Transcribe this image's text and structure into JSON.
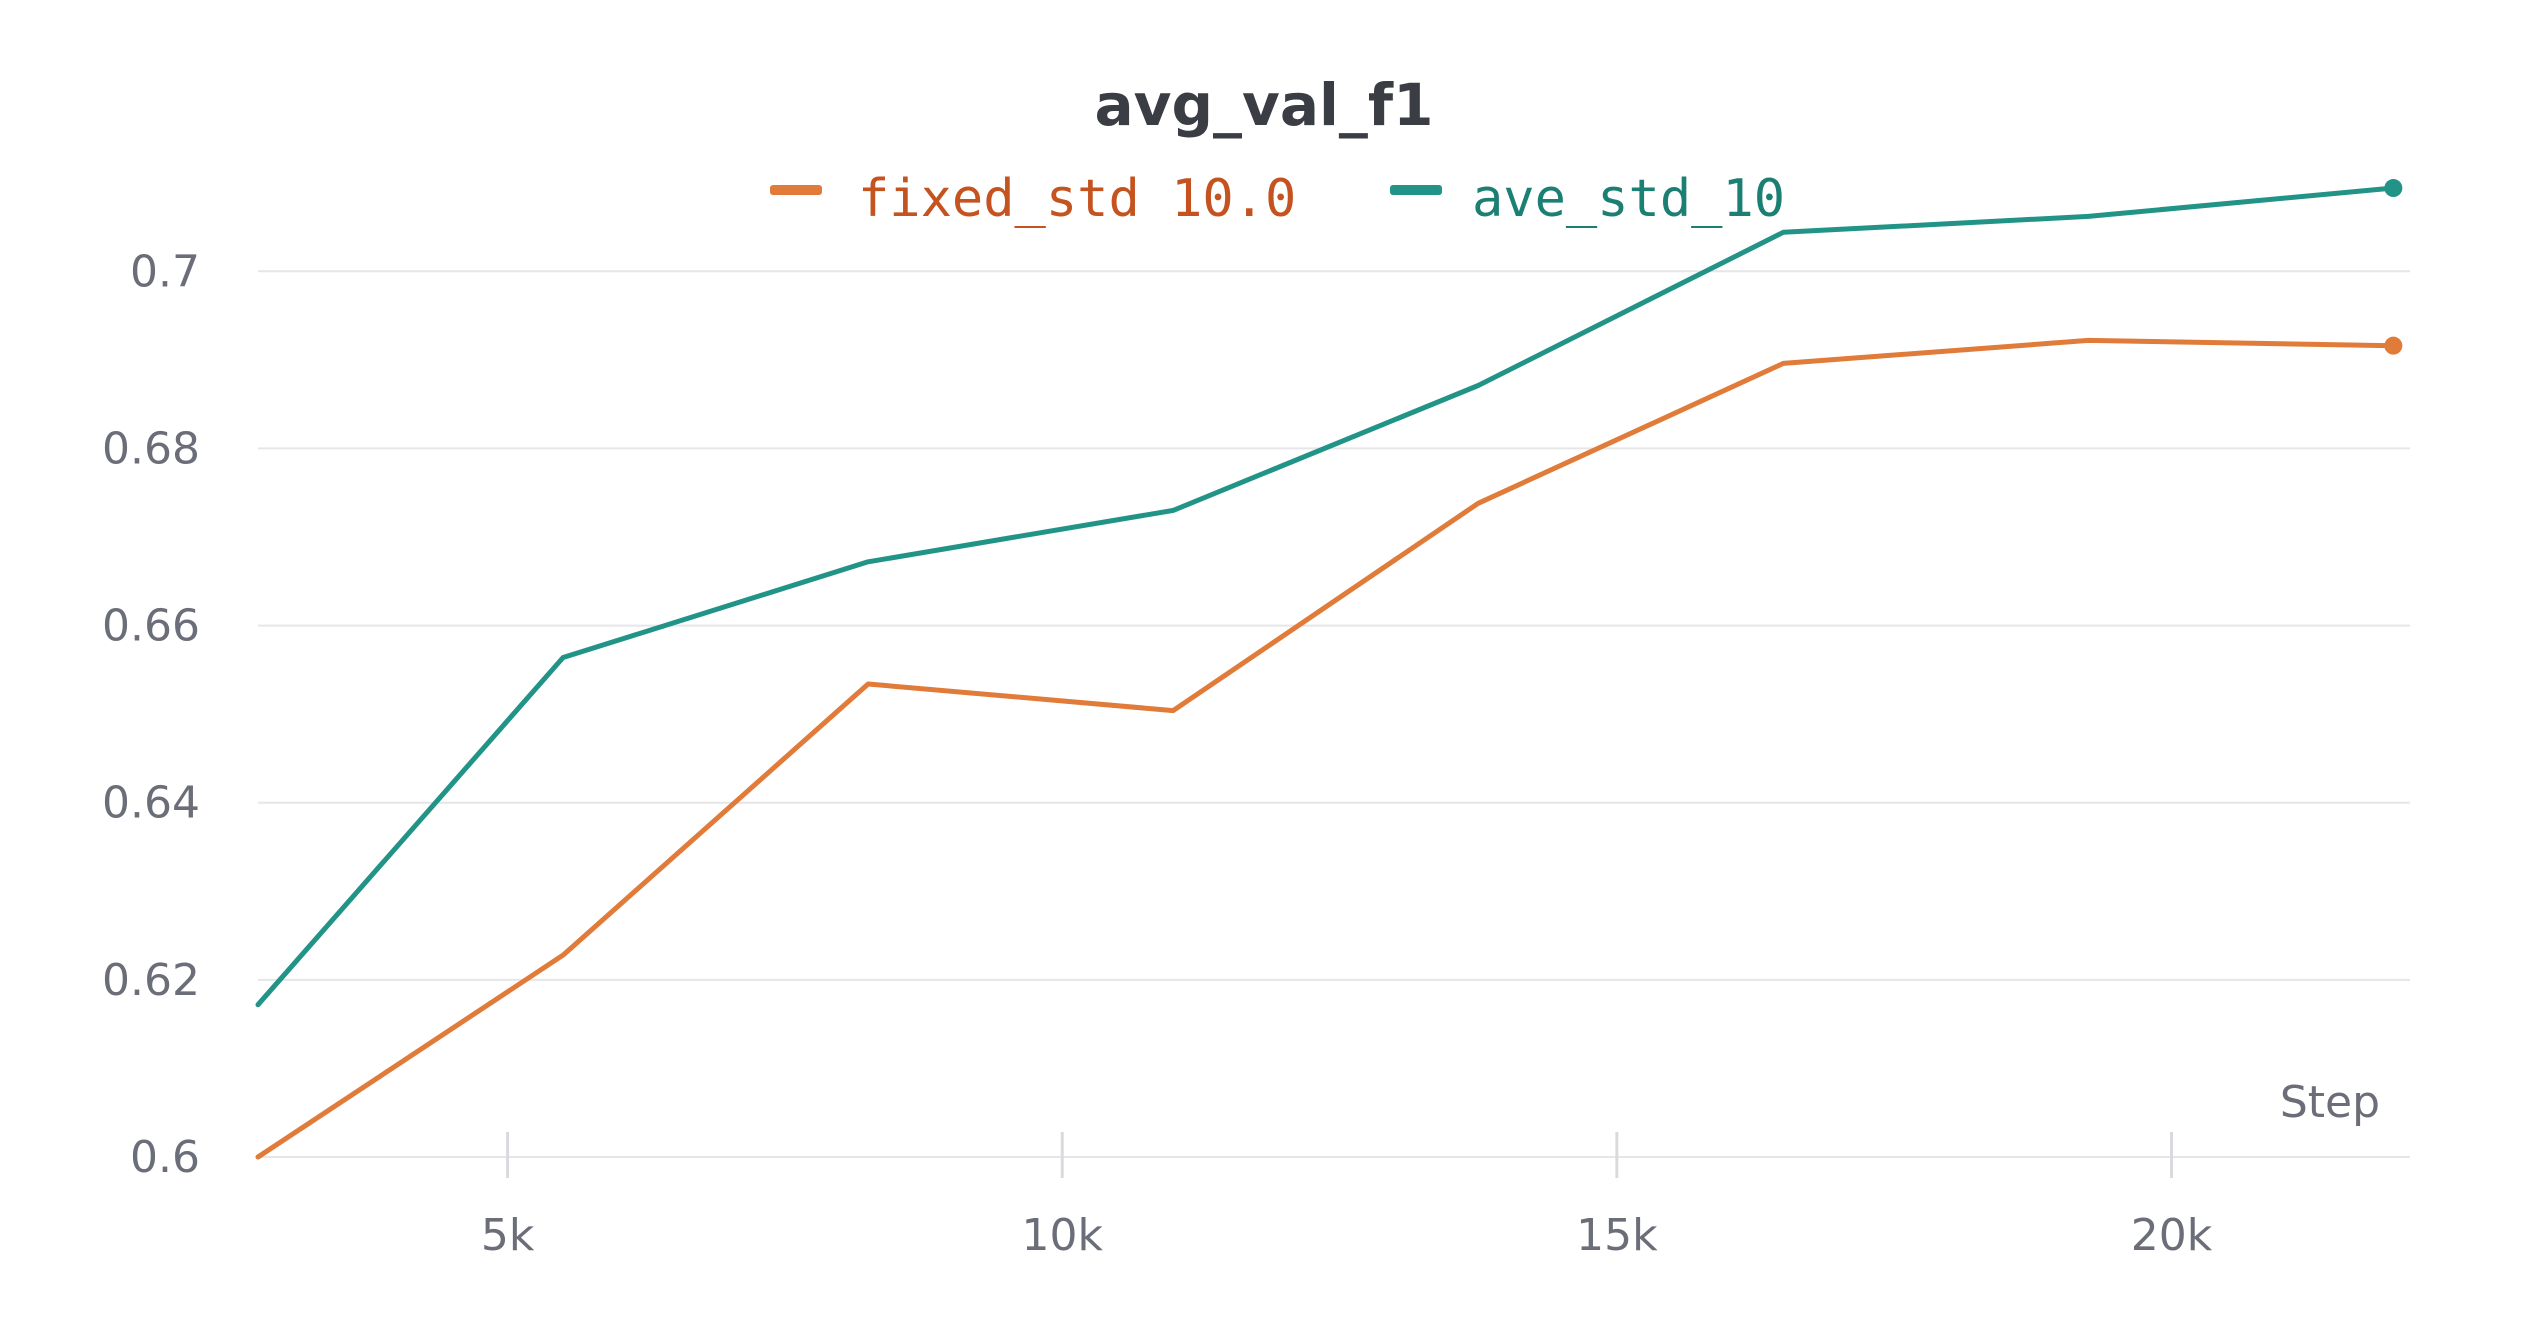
{
  "chart_data": {
    "type": "line",
    "title": "avg_val_f1",
    "xlabel": "Step",
    "ylabel": "",
    "xlim": [
      2750,
      22150
    ],
    "ylim": [
      0.6,
      0.712
    ],
    "x_ticks": [
      5000,
      10000,
      15000,
      20000
    ],
    "x_tick_labels": [
      "5k",
      "10k",
      "15k",
      "20k"
    ],
    "y_ticks": [
      0.6,
      0.62,
      0.64,
      0.66,
      0.68,
      0.7
    ],
    "y_tick_labels": [
      "0.6",
      "0.62",
      "0.64",
      "0.66",
      "0.68",
      "0.7"
    ],
    "grid": true,
    "legend_position": "top-center",
    "series": [
      {
        "name": "fixed_std 10.0",
        "color": "#e07b39",
        "label_color": "#c5531f",
        "x": [
          2750,
          5500,
          8250,
          11000,
          13750,
          16500,
          19250,
          22000
        ],
        "y": [
          0.6,
          0.6228,
          0.6534,
          0.6504,
          0.6738,
          0.6896,
          0.6922,
          0.6916
        ],
        "end_marker": true
      },
      {
        "name": "ave_std_10",
        "color": "#229487",
        "label_color": "#1b7f73",
        "x": [
          2750,
          5500,
          8250,
          11000,
          13750,
          16500,
          19250,
          22000
        ],
        "y": [
          0.6172,
          0.6564,
          0.6672,
          0.673,
          0.6871,
          0.7044,
          0.7062,
          0.7094
        ],
        "end_marker": true
      }
    ]
  }
}
